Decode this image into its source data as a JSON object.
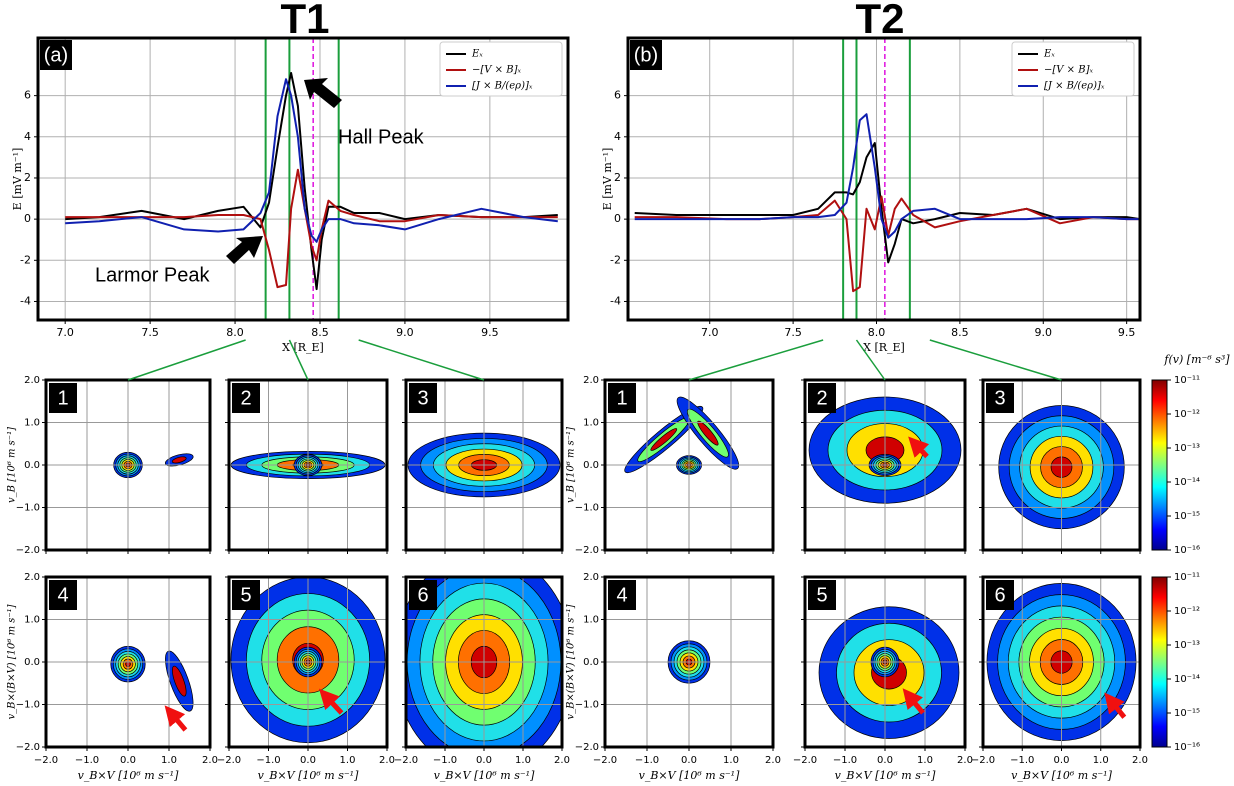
{
  "titles": [
    "T1",
    "T2"
  ],
  "chart_data": [
    {
      "type": "line",
      "panel_label": "(a)",
      "ylabel": "E [mV m⁻¹]",
      "xlabel": "X [R_E]",
      "xlim": [
        6.84,
        9.96
      ],
      "ylim": [
        -4.9,
        8.8
      ],
      "xticks": [
        {
          "value": 7,
          "label": "7.0"
        },
        7.5,
        {
          "value": 8,
          "label": "8.0"
        },
        8.5,
        {
          "value": 9,
          "label": "9.0"
        },
        9.5
      ],
      "yticks": [
        -4,
        -2,
        0,
        2,
        4,
        6
      ],
      "grid": true,
      "legend": "upper right",
      "vlines": [
        8.18,
        8.32,
        8.61
      ],
      "vline_color": "#1a9e3c",
      "dashed_line": 8.46,
      "dashed_color": "#e020e0",
      "annotations": [
        "Hall Peak",
        "Larmor Peak"
      ],
      "x": [
        7.0,
        7.2,
        7.45,
        7.7,
        7.9,
        8.05,
        8.15,
        8.2,
        8.25,
        8.3,
        8.33,
        8.37,
        8.41,
        8.45,
        8.48,
        8.51,
        8.55,
        8.62,
        8.7,
        8.85,
        9.0,
        9.2,
        9.45,
        9.7,
        9.9
      ],
      "series": [
        {
          "name": "Eₓ",
          "color": "#000000",
          "values": [
            0.0,
            0.1,
            0.4,
            0.0,
            0.4,
            0.6,
            -0.4,
            0.8,
            3.5,
            6.0,
            7.1,
            5.5,
            1.5,
            -1.5,
            -3.4,
            -1.0,
            0.6,
            0.6,
            0.3,
            0.3,
            0.0,
            0.2,
            0.1,
            0.1,
            0.2
          ]
        },
        {
          "name": "−[V × B]ₓ",
          "color": "#b01010",
          "values": [
            0.1,
            0.1,
            0.1,
            0.1,
            0.2,
            0.2,
            0.0,
            -1.5,
            -3.3,
            -3.2,
            0.5,
            2.4,
            0.5,
            -1.3,
            -2.0,
            -0.5,
            0.9,
            0.4,
            0.2,
            -0.1,
            -0.1,
            0.2,
            0.1,
            0.1,
            0.1
          ]
        },
        {
          "name": "[J × B/(eρ)]ₓ",
          "color": "#1020b0",
          "values": [
            -0.2,
            -0.1,
            0.1,
            -0.5,
            -0.6,
            -0.5,
            0.3,
            1.3,
            5.0,
            6.8,
            6.0,
            4.0,
            0.5,
            -0.8,
            -1.1,
            -0.5,
            0.0,
            0.0,
            -0.2,
            -0.3,
            -0.5,
            0.0,
            0.5,
            0.1,
            -0.1
          ]
        }
      ]
    },
    {
      "type": "line",
      "panel_label": "(b)",
      "ylabel": "E [mV m⁻¹]",
      "xlabel": "X [R_E]",
      "xlim": [
        6.51,
        9.58
      ],
      "ylim": [
        -4.9,
        8.8
      ],
      "xticks": [
        {
          "value": 7,
          "label": "7.0"
        },
        7.5,
        {
          "value": 8,
          "label": "8.0"
        },
        8.5,
        {
          "value": 9,
          "label": "9.0"
        },
        9.5
      ],
      "yticks": [
        -4,
        -2,
        0,
        2,
        4,
        6
      ],
      "grid": true,
      "legend": "upper right",
      "vlines": [
        7.8,
        7.88,
        8.2
      ],
      "vline_color": "#1a9e3c",
      "dashed_line": 8.05,
      "dashed_color": "#e020e0",
      "x": [
        6.55,
        6.8,
        7.1,
        7.3,
        7.5,
        7.65,
        7.75,
        7.82,
        7.86,
        7.9,
        7.94,
        7.99,
        8.03,
        8.07,
        8.11,
        8.15,
        8.22,
        8.35,
        8.5,
        8.7,
        8.9,
        9.1,
        9.3,
        9.5,
        9.58
      ],
      "series": [
        {
          "name": "Eₓ",
          "color": "#000000",
          "values": [
            0.3,
            0.2,
            0.2,
            0.2,
            0.2,
            0.5,
            1.3,
            1.3,
            1.2,
            1.8,
            3.0,
            3.7,
            0.5,
            -2.1,
            -1.2,
            0.0,
            -0.2,
            0.0,
            0.3,
            0.2,
            0.5,
            0.0,
            0.1,
            0.1,
            0.0
          ]
        },
        {
          "name": "−[V × B]ₓ",
          "color": "#b01010",
          "values": [
            0.1,
            0.1,
            0.0,
            0.0,
            0.1,
            0.2,
            0.9,
            0.0,
            -3.5,
            -3.3,
            0.5,
            -0.5,
            1.1,
            -0.8,
            0.5,
            1.0,
            0.2,
            -0.4,
            -0.1,
            0.2,
            0.5,
            -0.2,
            0.1,
            0.0,
            0.0
          ]
        },
        {
          "name": "[J × B/(eρ)]ₓ",
          "color": "#1020b0",
          "values": [
            0.0,
            0.0,
            0.0,
            0.0,
            0.1,
            0.1,
            0.2,
            0.8,
            2.5,
            4.8,
            5.1,
            2.5,
            0.0,
            -0.9,
            -0.6,
            0.0,
            0.4,
            0.5,
            0.0,
            0.0,
            0.0,
            0.1,
            0.1,
            0.0,
            0.0
          ]
        }
      ]
    }
  ],
  "vdf_panels": {
    "panel_labels": [
      "1",
      "2",
      "3",
      "4",
      "5",
      "6"
    ],
    "ylabel_top": "v_B [10⁶ m s⁻¹]",
    "ylabel_bottom": "v_B×(B×V) [10⁶ m s⁻¹]",
    "xlabel": "v_B×V [10⁶ m s⁻¹]",
    "xlim": [
      -2,
      2
    ],
    "ylim": [
      -2,
      2
    ],
    "xticks": [
      {
        "value": -2,
        "label": "−2.0"
      },
      {
        "value": -1,
        "label": "−1.0"
      },
      {
        "value": 0,
        "label": "0.0"
      },
      {
        "value": 1,
        "label": "1.0"
      },
      {
        "value": 2,
        "label": "2.0"
      }
    ],
    "yticks": [
      {
        "value": -2,
        "label": "−2.0"
      },
      {
        "value": -1,
        "label": "−1.0"
      },
      {
        "value": 0,
        "label": "0.0"
      },
      {
        "value": 1,
        "label": "1.0"
      },
      {
        "value": 2,
        "label": "2.0"
      }
    ],
    "colorbar": {
      "label": "f(v) [m⁻⁶ s³]",
      "lim": [
        -16,
        -11
      ],
      "ticks": [
        {
          "value": -11,
          "label": "10⁻¹¹"
        },
        {
          "value": -12,
          "label": "10⁻¹²"
        },
        {
          "value": -13,
          "label": "10⁻¹³"
        },
        {
          "value": -14,
          "label": "10⁻¹⁴"
        },
        {
          "value": -15,
          "label": "10⁻¹⁵"
        },
        {
          "value": -16,
          "label": "10⁻¹⁶"
        }
      ]
    }
  }
}
